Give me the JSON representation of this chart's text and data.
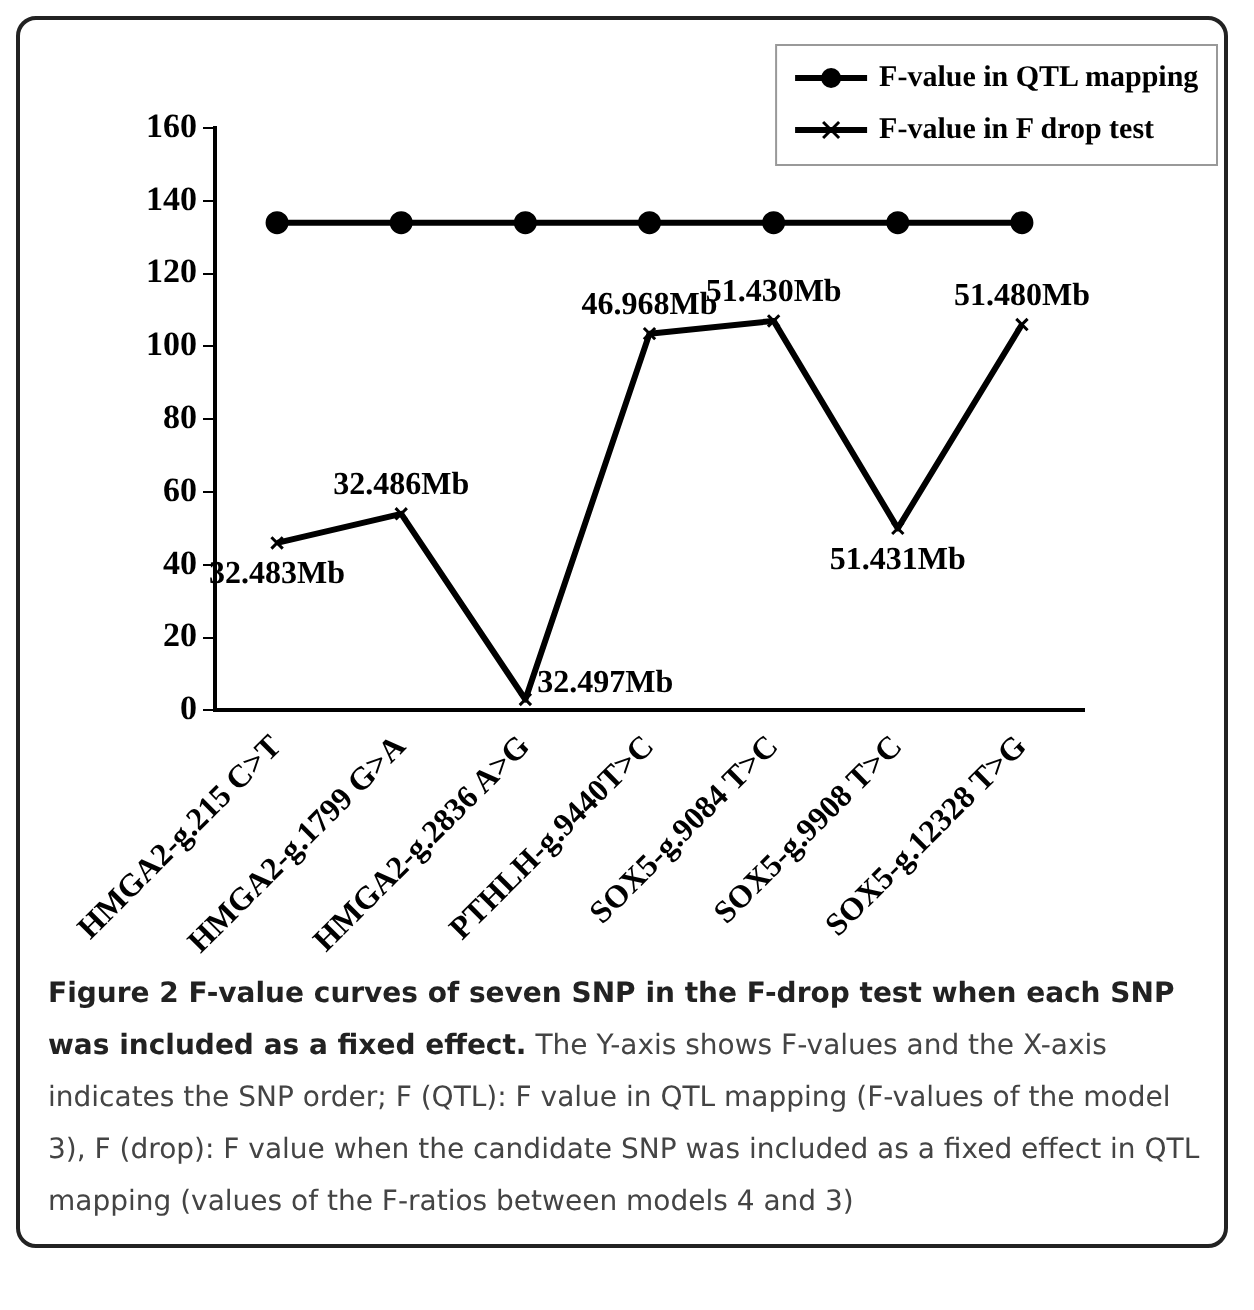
{
  "chart_data": {
    "type": "line",
    "title": "Figure 2 F-value curves of seven SNP in the F-drop test when each SNP was included as a fixed effect.",
    "categories": [
      "HMGA2-g.215 C>T",
      "HMGA2-g.1799 G>A",
      "HMGA2-g.2836 A>G",
      "PTHLH-g.9440T>C",
      "SOX5-g.9084 T>C",
      "SOX5-g.9908 T>C",
      "SOX5-g.12328 T>G"
    ],
    "series": [
      {
        "name": "F-value in QTL mapping",
        "color": "#000000",
        "marker": "circle",
        "values": [
          134,
          134,
          134,
          134,
          134,
          134,
          134
        ]
      },
      {
        "name": "F-value in F drop test",
        "color": "#000000",
        "marker": "cross",
        "values": [
          46,
          54,
          3,
          103.5,
          107,
          50,
          106
        ]
      }
    ],
    "ylim": [
      0,
      160
    ],
    "yticks": [
      0,
      20,
      40,
      60,
      80,
      100,
      120,
      140,
      160
    ],
    "grid": false,
    "legend": "top right",
    "line_style": "solid",
    "annotations": [
      {
        "text": "32.483Mb",
        "x": "HMGA2-g.215 C>T",
        "y": 46
      },
      {
        "text": "32.486Mb",
        "x": "HMGA2-g.1799 G>A",
        "y": 54
      },
      {
        "text": "32.497Mb",
        "x": "HMGA2-g.2836 A>G",
        "y": 3
      },
      {
        "text": "46.968Mb",
        "x": "PTHLH-g.9440T>C",
        "y": 103.5
      },
      {
        "text": "51.430Mb",
        "x": "SOX5-g.9084 T>C",
        "y": 107
      },
      {
        "text": "51.431Mb",
        "x": "SOX5-g.9908 T>C",
        "y": 50
      },
      {
        "text": "51.480Mb",
        "x": "SOX5-g.12328 T>G",
        "y": 106
      },
      "The Y-axis shows F-values and the X-axis indicates the SNP order; F (QTL): F value in QTL mapping (F-values of the model 3), F (drop): F value when the candidate SNP was included as a fixed effect in QTL mapping (values of the F-ratios between models 4 and 3)"
    ]
  }
}
